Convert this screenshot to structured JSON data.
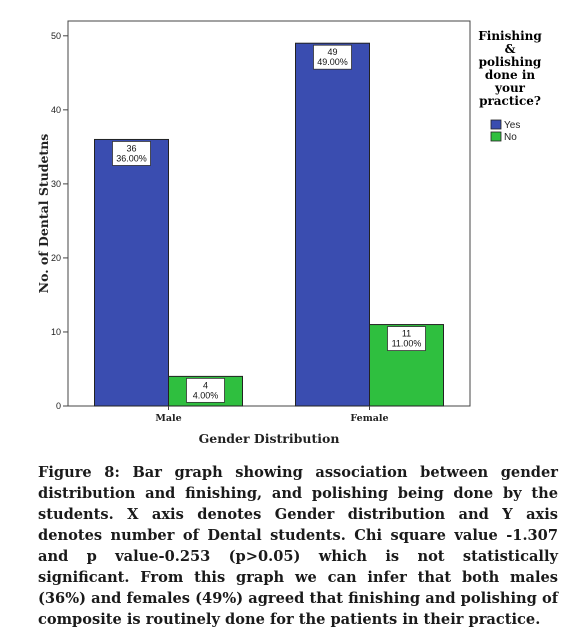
{
  "chart_data": {
    "type": "bar",
    "title": "",
    "xlabel": "Gender Distribution",
    "ylabel": "No. of Dental Studetns",
    "categories": [
      "Male",
      "Female"
    ],
    "series": [
      {
        "name": "Yes",
        "color": "#3a4db0",
        "values": [
          36,
          49
        ],
        "labels": [
          "36\n36.00%",
          "49\n49.00%"
        ]
      },
      {
        "name": "No",
        "color": "#2fbf3f",
        "values": [
          4,
          11
        ],
        "labels": [
          "4\n4.00%",
          "11\n11.00%"
        ]
      }
    ],
    "ylim": [
      0,
      52
    ],
    "yticks": [
      0,
      10,
      20,
      30,
      40,
      50
    ],
    "grid": false,
    "legend": {
      "title": "Finishing & polishing done in your practice?",
      "title_lines": [
        "Finishing",
        "&",
        "polishing",
        "done in",
        "your",
        "practice?"
      ],
      "position": "right"
    }
  },
  "caption": "Figure 8: Bar graph showing association between gender distribution and finishing, and polishing being done by the students. X axis denotes Gender distribution and Y axis denotes number of Dental students. Chi square value -1.307 and p value-0.253 (p>0.05) which is not statistically significant. From this graph we can infer that both males (36%) and females (49%) agreed that finishing and polishing of composite is routinely done for the patients in their practice."
}
